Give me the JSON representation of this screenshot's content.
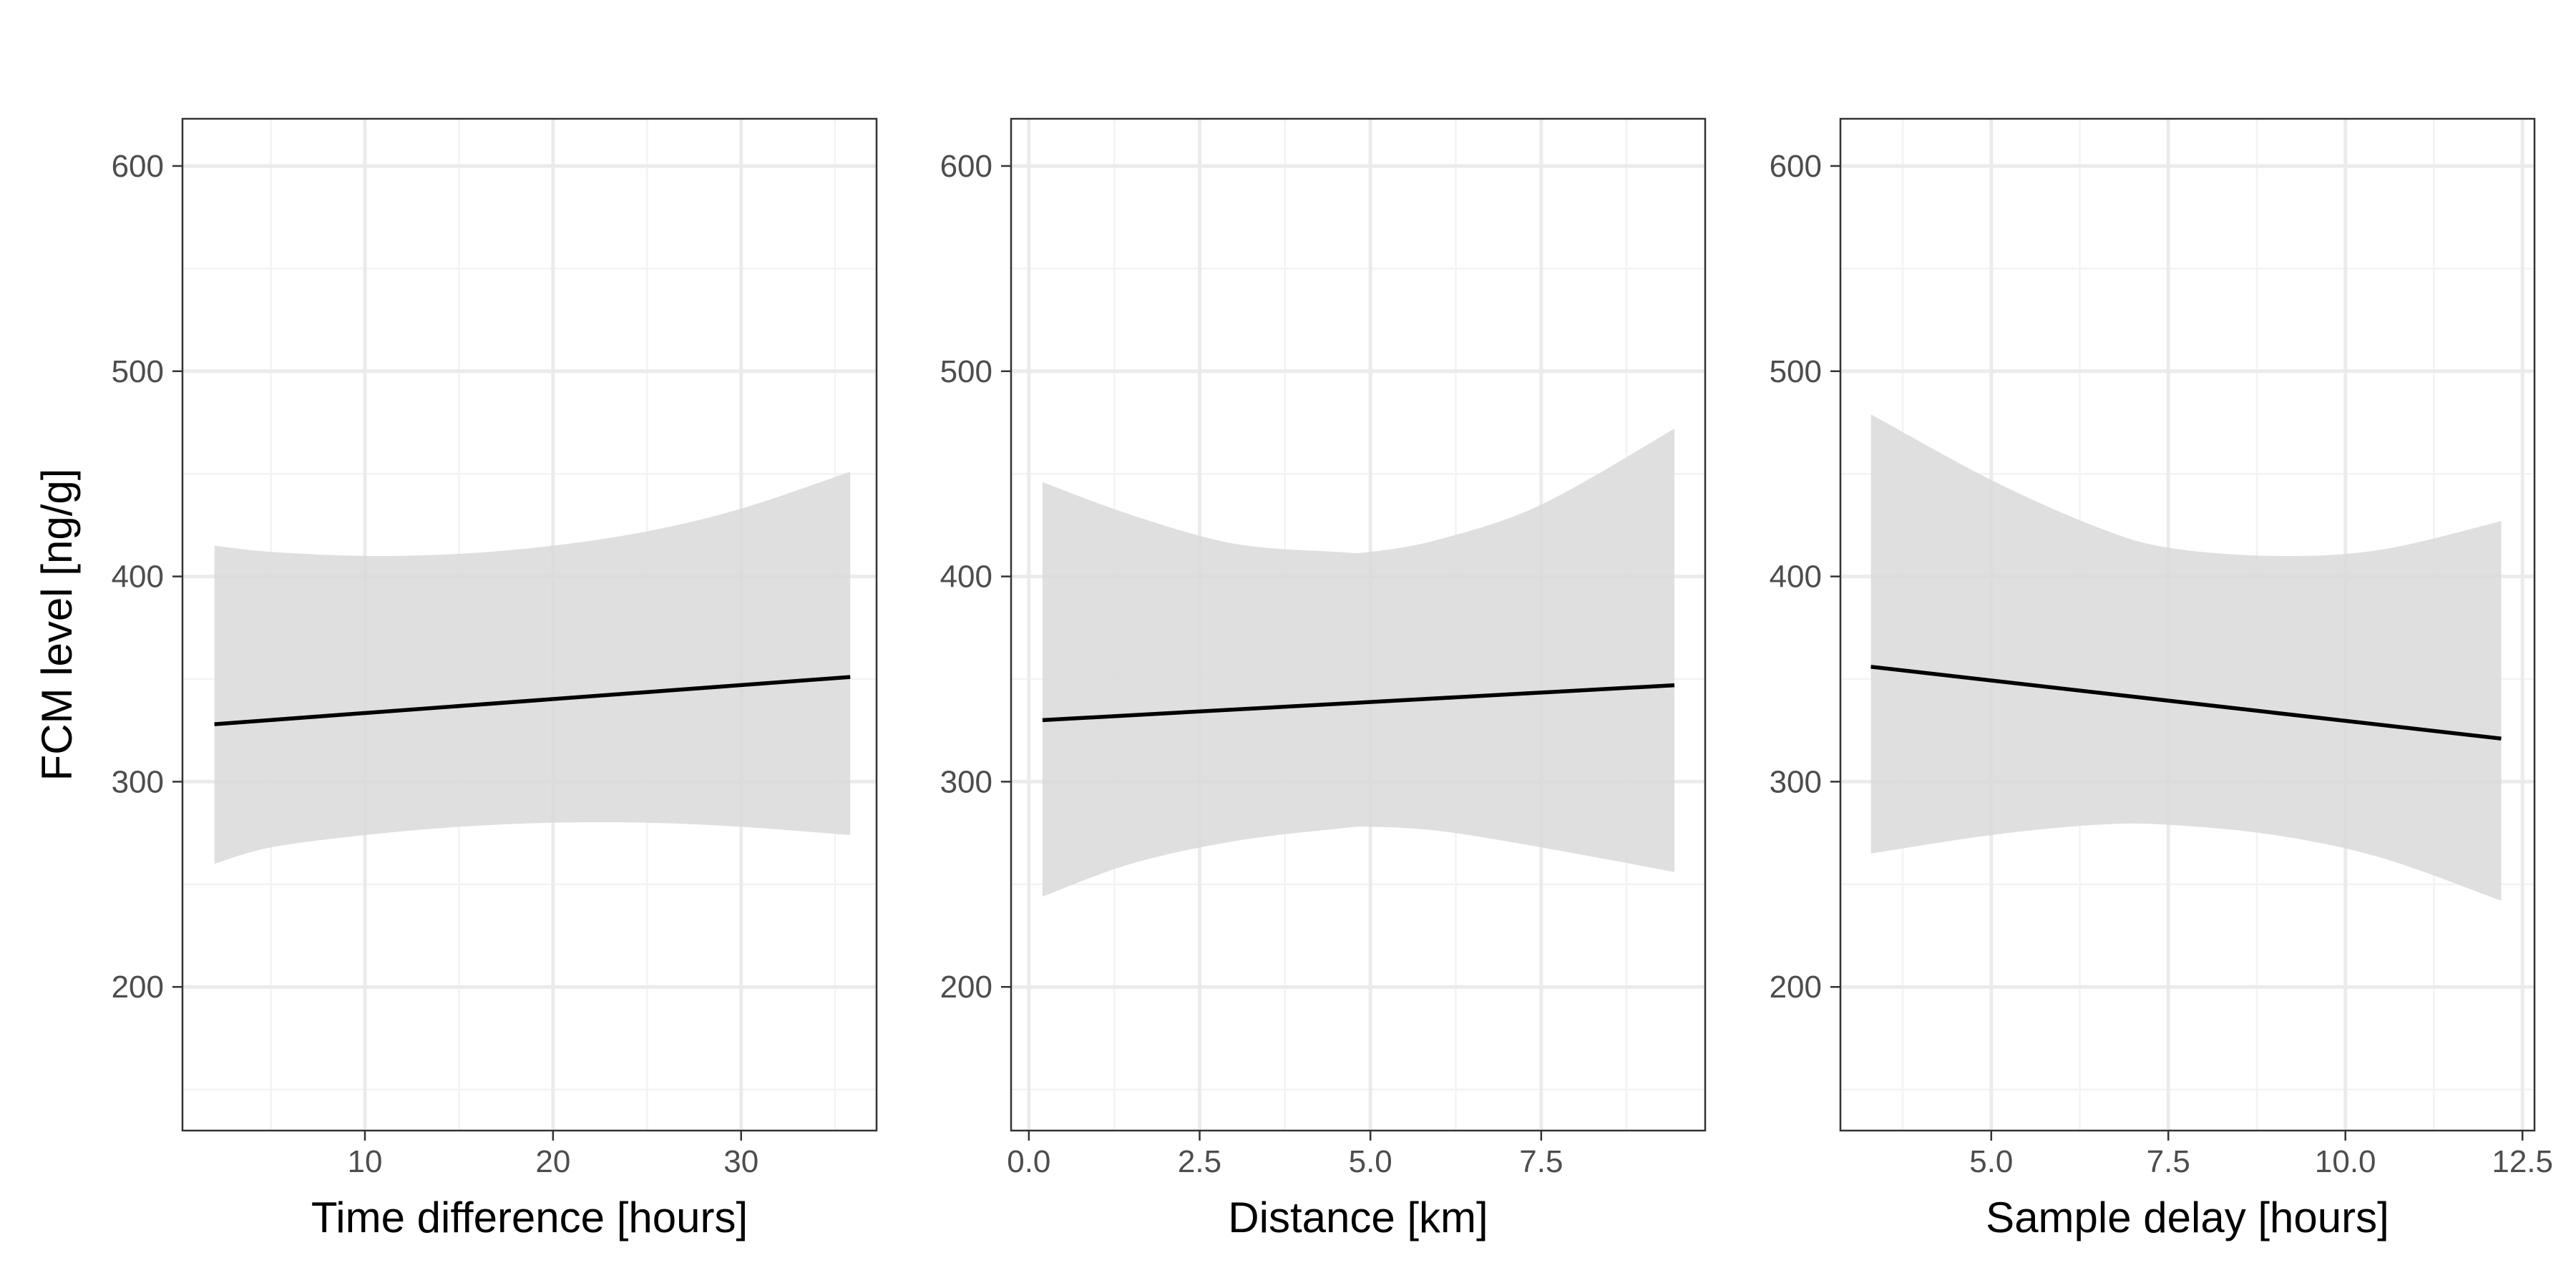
{
  "colors": {
    "line": "#000000",
    "ribbon": "#d9d9d9",
    "panel_border": "#333333",
    "grid_major": "#ebebeb",
    "grid_minor": "#f3f3f3",
    "tick_label": "#4d4d4d",
    "background": "#ffffff"
  },
  "chart_data": [
    {
      "type": "line",
      "panel": "time-difference",
      "xlabel": "Time difference [hours]",
      "ylabel": "FCM level [ng/g]",
      "grid": true,
      "xlim": [
        0.3,
        37.2
      ],
      "ylim": [
        130,
        623
      ],
      "xticks": [
        10,
        20,
        30
      ],
      "xtick_labels": [
        "10",
        "20",
        "30"
      ],
      "yticks": [
        200,
        300,
        400,
        500,
        600
      ],
      "ytick_labels": [
        "200",
        "300",
        "400",
        "500",
        "600"
      ],
      "series": [
        {
          "x": [
            2,
            35.8
          ],
          "y": [
            328,
            351
          ]
        }
      ],
      "ribbon": {
        "x": [
          2,
          5,
          10,
          15,
          20,
          25,
          30,
          35.8
        ],
        "lower": [
          260,
          268,
          274,
          278,
          280,
          280,
          278,
          274
        ],
        "upper": [
          415,
          412,
          410,
          411,
          415,
          422,
          433,
          451
        ]
      }
    },
    {
      "type": "line",
      "panel": "distance",
      "xlabel": "Distance [km]",
      "ylabel": "",
      "grid": true,
      "xlim": [
        -0.26,
        9.9
      ],
      "ylim": [
        130,
        623
      ],
      "xticks": [
        0,
        2.5,
        5,
        7.5
      ],
      "xtick_labels": [
        "0.0",
        "2.5",
        "5.0",
        "7.5"
      ],
      "yticks": [
        200,
        300,
        400,
        500,
        600
      ],
      "ytick_labels": [
        "200",
        "300",
        "400",
        "500",
        "600"
      ],
      "series": [
        {
          "x": [
            0.2,
            9.45
          ],
          "y": [
            330,
            347
          ]
        }
      ],
      "ribbon": {
        "x": [
          0.2,
          1.5,
          3,
          4.5,
          5,
          6,
          7.5,
          9.45
        ],
        "lower": [
          244,
          260,
          271,
          277,
          278,
          276,
          268,
          256
        ],
        "upper": [
          446,
          430,
          416,
          412,
          412,
          418,
          435,
          472
        ]
      }
    },
    {
      "type": "line",
      "panel": "sample-delay",
      "xlabel": "Sample delay [hours]",
      "ylabel": "",
      "grid": true,
      "xlim": [
        2.87,
        12.67
      ],
      "ylim": [
        130,
        623
      ],
      "xticks": [
        5,
        7.5,
        10,
        12.5
      ],
      "xtick_labels": [
        "5.0",
        "7.5",
        "10.0",
        "12.5"
      ],
      "yticks": [
        200,
        300,
        400,
        500,
        600
      ],
      "ytick_labels": [
        "200",
        "300",
        "400",
        "500",
        "600"
      ],
      "series": [
        {
          "x": [
            3.3,
            12.2
          ],
          "y": [
            356,
            321
          ]
        }
      ],
      "ribbon": {
        "x": [
          3.3,
          5,
          6.5,
          7.5,
          9,
          10.5,
          12.2
        ],
        "lower": [
          265,
          274,
          279,
          279,
          274,
          263,
          242
        ],
        "upper": [
          479,
          447,
          424,
          414,
          410,
          413,
          427
        ]
      }
    }
  ]
}
